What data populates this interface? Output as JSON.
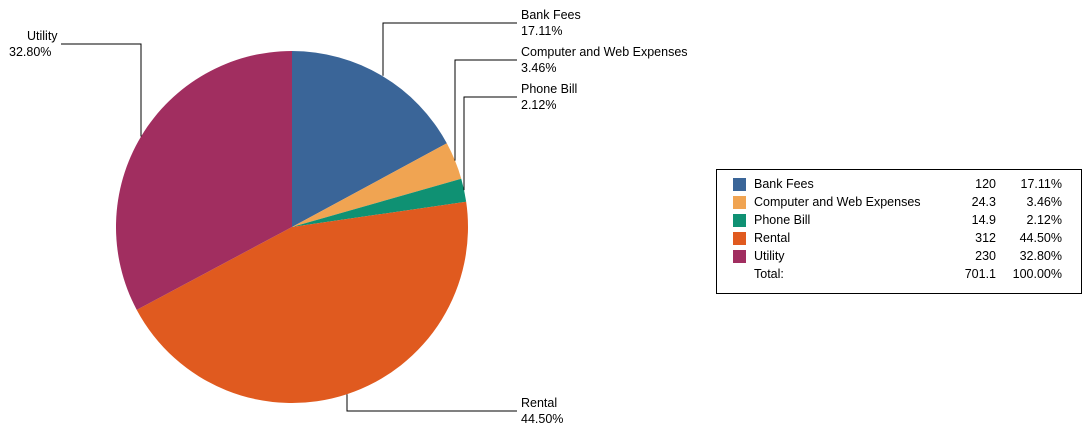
{
  "chart_data": {
    "type": "pie",
    "title": "",
    "slices": [
      {
        "label": "Bank Fees",
        "value": 120,
        "percent_label": "17.11%",
        "color": "#3a6598"
      },
      {
        "label": "Computer and Web Expenses",
        "value": 24.3,
        "percent_label": "3.46%",
        "color": "#f0a452"
      },
      {
        "label": "Phone Bill",
        "value": 14.9,
        "percent_label": "2.12%",
        "color": "#0f9173"
      },
      {
        "label": "Rental",
        "value": 312,
        "percent_label": "44.50%",
        "color": "#e05a1f"
      },
      {
        "label": "Utility",
        "value": 230,
        "percent_label": "32.80%",
        "color": "#a12e60"
      }
    ],
    "legend": {
      "position": "right",
      "rows": [
        {
          "name": "Bank Fees",
          "value": "120",
          "percent": "17.11%",
          "color": "#3a6598"
        },
        {
          "name": "Computer and Web Expenses",
          "value": "24.3",
          "percent": "3.46%",
          "color": "#f0a452"
        },
        {
          "name": "Phone Bill",
          "value": "14.9",
          "percent": "2.12%",
          "color": "#0f9173"
        },
        {
          "name": "Rental",
          "value": "312",
          "percent": "44.50%",
          "color": "#e05a1f"
        },
        {
          "name": "Utility",
          "value": "230",
          "percent": "32.80%",
          "color": "#a12e60"
        }
      ],
      "total": {
        "name": "Total:",
        "value": "701.1",
        "percent": "100.00%"
      }
    }
  }
}
